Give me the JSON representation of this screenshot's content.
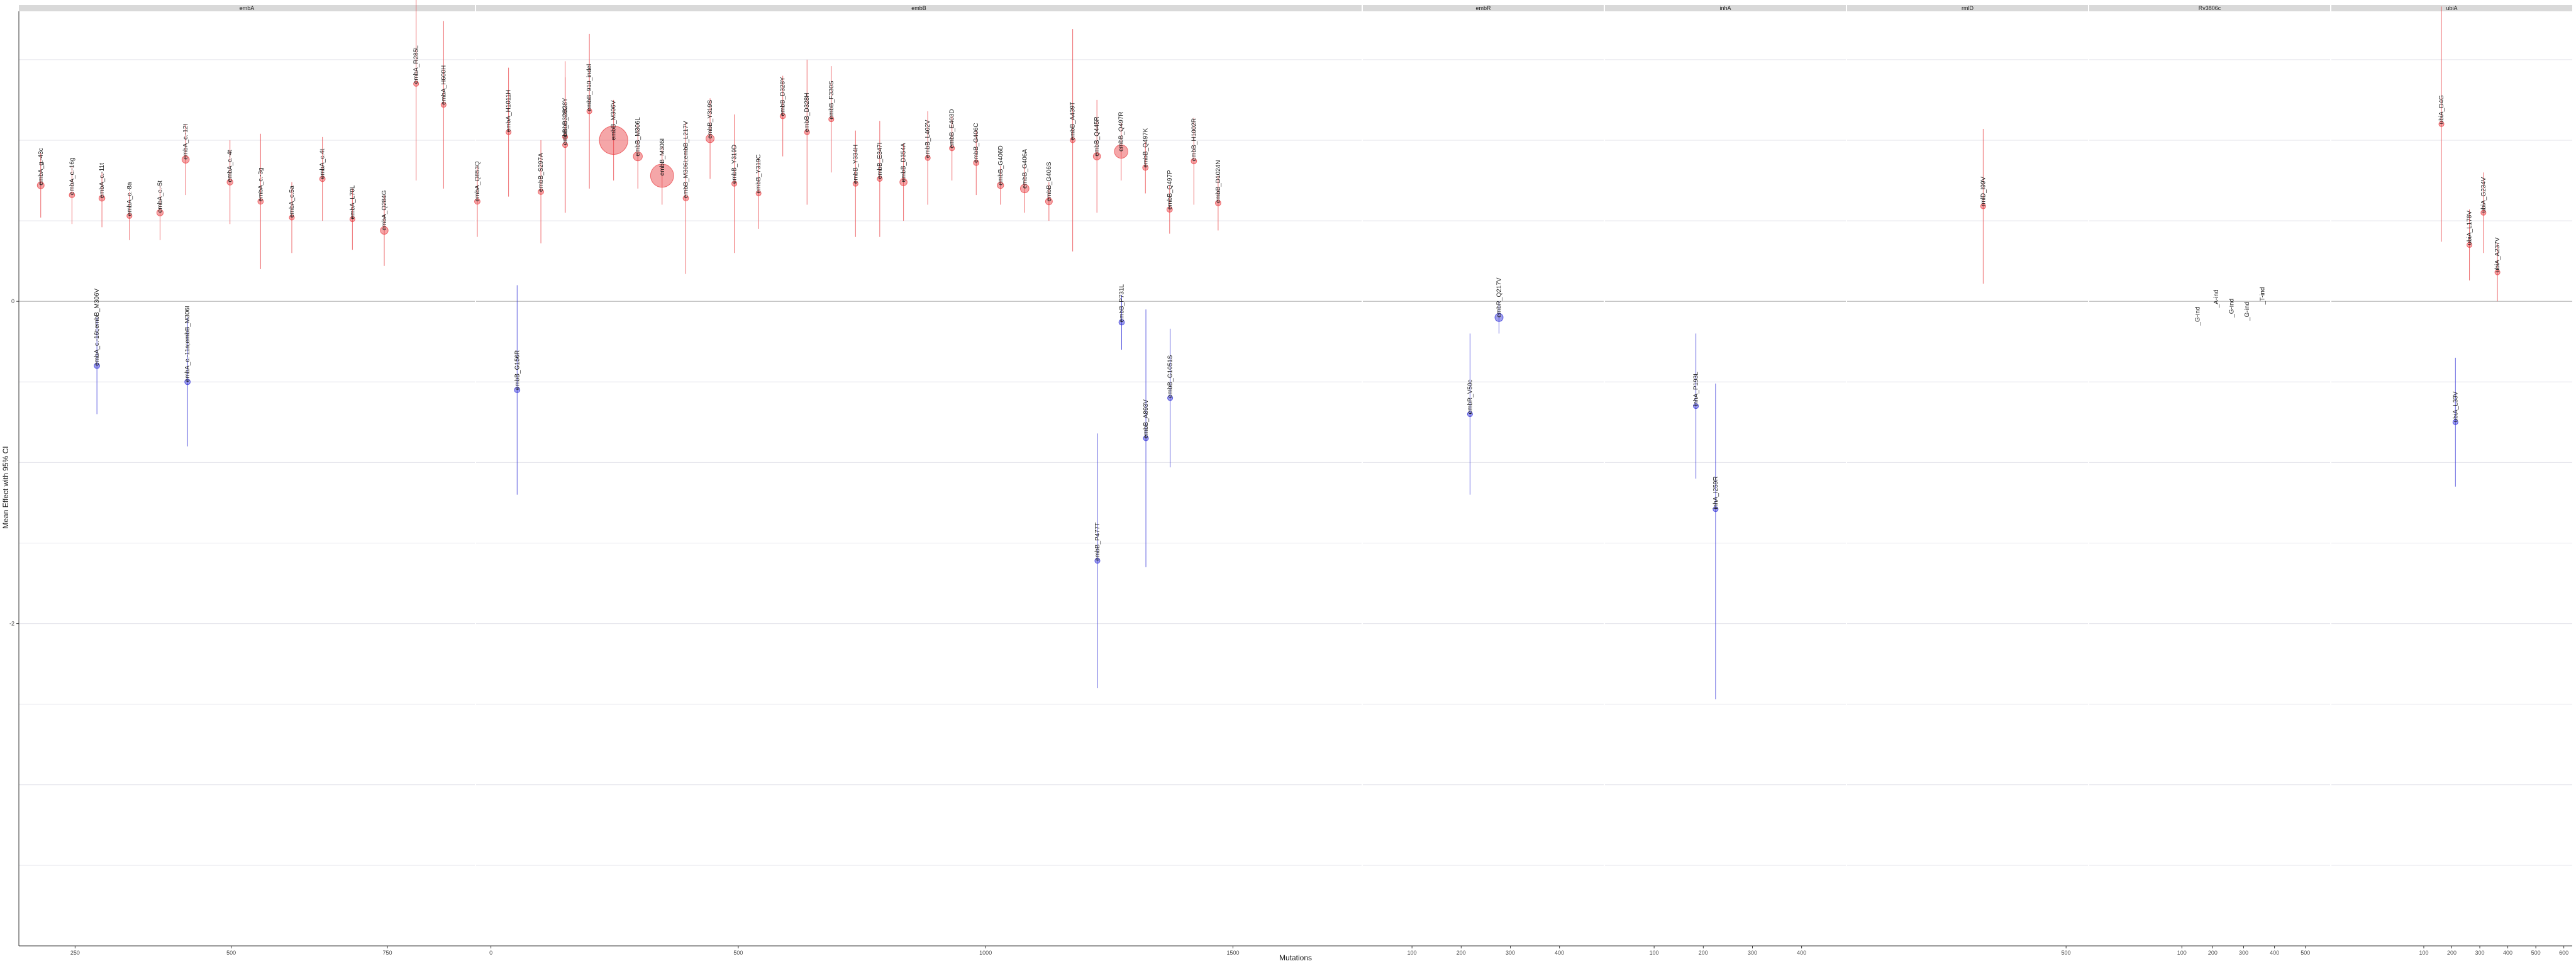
{
  "chart_data": {
    "type": "scatter",
    "subtype": "faceted forest plot (point estimate with 95% CI, point size = weight)",
    "xlabel": "Mutations",
    "ylabel": "Mean Effect with 95% CI",
    "ylim": [
      -4.0,
      1.8
    ],
    "y_ticks": [
      -2,
      0,
      2
    ],
    "grid": true,
    "colors": {
      "positive": "#e8393d",
      "negative": "#2b2bd6",
      "strip": "#d9d9d9",
      "grid": "#e3e3ea",
      "zero": "#bdbdbd"
    },
    "facets": [
      {
        "name": "embA",
        "xlim": [
          160,
          890
        ],
        "ticks": [
          250,
          500,
          750
        ]
      },
      {
        "name": "embB",
        "xlim": [
          -30,
          1760
        ],
        "ticks": [
          0,
          500,
          1000,
          1500
        ]
      },
      {
        "name": "embR",
        "xlim": [
          0,
          490
        ],
        "ticks": [
          100,
          200,
          300,
          400
        ]
      },
      {
        "name": "inhA",
        "xlim": [
          0,
          490
        ],
        "ticks": [
          100,
          200,
          300,
          400
        ]
      },
      {
        "name": "rmlD",
        "xlim": [
          -200,
          570
        ],
        "ticks": [
          500
        ]
      },
      {
        "name": "Rv3806c",
        "xlim": [
          -200,
          580
        ],
        "ticks": [
          100,
          200,
          300,
          400,
          500
        ]
      },
      {
        "name": "ubiA",
        "xlim": [
          -230,
          630
        ],
        "ticks": [
          100,
          200,
          300,
          400,
          500,
          600
        ]
      }
    ],
    "points": [
      {
        "facet": 0,
        "label": "embA_g.-43c",
        "x": 195,
        "y": 0.72,
        "lo": 0.52,
        "hi": 0.92,
        "w": 0.35
      },
      {
        "facet": 0,
        "label": "embA_c.-16g",
        "x": 245,
        "y": 0.66,
        "lo": 0.48,
        "hi": 0.84,
        "w": 0.2
      },
      {
        "facet": 0,
        "label": "embA_c.-11t",
        "x": 293,
        "y": 0.64,
        "lo": 0.46,
        "hi": 0.8,
        "w": 0.25
      },
      {
        "facet": 0,
        "label": "embA_c.-8a",
        "x": 337,
        "y": 0.53,
        "lo": 0.38,
        "hi": 0.68,
        "w": 0.15
      },
      {
        "facet": 0,
        "label": "embA_c.-5t",
        "x": 386,
        "y": 0.55,
        "lo": 0.38,
        "hi": 0.72,
        "w": 0.3
      },
      {
        "facet": 0,
        "label": "embA_c.-12t",
        "x": 427,
        "y": 0.88,
        "lo": 0.66,
        "hi": 1.1,
        "w": 0.4
      },
      {
        "facet": 0,
        "label": "embA_c.-4t",
        "x": 498,
        "y": 0.74,
        "lo": 0.48,
        "hi": 1.0,
        "w": 0.25
      },
      {
        "facet": 0,
        "label": "embA_c.-3g",
        "x": 547,
        "y": 0.62,
        "lo": 0.2,
        "hi": 1.04,
        "w": 0.2
      },
      {
        "facet": 0,
        "label": "embA_c.5a",
        "x": 597,
        "y": 0.52,
        "lo": 0.3,
        "hi": 0.74,
        "w": 0.15
      },
      {
        "facet": 0,
        "label": "embA_c.4t",
        "x": 646,
        "y": 0.76,
        "lo": 0.5,
        "hi": 1.02,
        "w": 0.2
      },
      {
        "facet": 0,
        "label": "embA_L70L",
        "x": 694,
        "y": 0.51,
        "lo": 0.32,
        "hi": 0.7,
        "w": 0.15
      },
      {
        "facet": 0,
        "label": "embA_Q284G",
        "x": 745,
        "y": 0.44,
        "lo": 0.22,
        "hi": 0.66,
        "w": 0.45
      },
      {
        "facet": 0,
        "label": "embA_R285L",
        "x": 796,
        "y": 1.35,
        "lo": 0.75,
        "hi": 1.95,
        "w": 0.15
      },
      {
        "facet": 0,
        "label": "embA_H600H",
        "x": 840,
        "y": 1.22,
        "lo": 0.7,
        "hi": 1.74,
        "w": 0.15
      },
      {
        "facet": 0,
        "label": "embA_Q853Q",
        "x": 894,
        "y": 0.62,
        "lo": 0.4,
        "hi": 0.84,
        "w": 0.2
      },
      {
        "facet": 0,
        "label": "embA_H1011H",
        "x": 944,
        "y": 1.05,
        "lo": 0.65,
        "hi": 1.45,
        "w": 0.15
      },
      {
        "facet": 0,
        "label": "embA_c.-16t;embB_M306V",
        "x": 285,
        "y": -0.4,
        "lo": -0.7,
        "hi": -0.1,
        "w": 0.2
      },
      {
        "facet": 0,
        "label": "embA_c.-11a;embB_M306I",
        "x": 430,
        "y": -0.5,
        "lo": -0.9,
        "hi": -0.1,
        "w": 0.2
      },
      {
        "facet": 1,
        "label": "embB_G156R",
        "x": 53,
        "y": -0.55,
        "lo": -1.2,
        "hi": 0.1,
        "w": 0.2
      },
      {
        "facet": 1,
        "label": "embB_S297A",
        "x": 101,
        "y": 0.68,
        "lo": 0.36,
        "hi": 1.0,
        "w": 0.2
      },
      {
        "facet": 1,
        "label": "embB_D328Y",
        "x": 150,
        "y": 1.02,
        "lo": 0.55,
        "hi": 1.49,
        "w": 0.15
      },
      {
        "facet": 1,
        "label": "embB_D328G",
        "x": 150,
        "y": 0.97,
        "lo": 0.55,
        "hi": 1.39,
        "w": 0.15
      },
      {
        "facet": 1,
        "label": "embB_910_indel",
        "x": 199,
        "y": 1.18,
        "lo": 0.7,
        "hi": 1.66,
        "w": 0.15
      },
      {
        "facet": 1,
        "label": "embB_M306V",
        "x": 248,
        "y": 1.0,
        "lo": 0.75,
        "hi": 1.25,
        "w": 2.8
      },
      {
        "facet": 1,
        "label": "embB_M306L",
        "x": 297,
        "y": 0.9,
        "lo": 0.7,
        "hi": 1.1,
        "w": 0.6
      },
      {
        "facet": 1,
        "label": "embB_M306I",
        "x": 346,
        "y": 0.78,
        "lo": 0.6,
        "hi": 0.96,
        "w": 2.2
      },
      {
        "facet": 1,
        "label": "embB_M306I;embB_L217V",
        "x": 394,
        "y": 0.64,
        "lo": 0.17,
        "hi": 1.11,
        "w": 0.2
      },
      {
        "facet": 1,
        "label": "embB_Y319S",
        "x": 443,
        "y": 1.01,
        "lo": 0.76,
        "hi": 1.26,
        "w": 0.5
      },
      {
        "facet": 1,
        "label": "embB_Y319D",
        "x": 492,
        "y": 0.73,
        "lo": 0.3,
        "hi": 1.16,
        "w": 0.15
      },
      {
        "facet": 1,
        "label": "embB_Y319C",
        "x": 541,
        "y": 0.67,
        "lo": 0.45,
        "hi": 0.89,
        "w": 0.15
      },
      {
        "facet": 1,
        "label": "embB_D328Y",
        "x": 590,
        "y": 1.15,
        "lo": 0.9,
        "hi": 1.4,
        "w": 0.2
      },
      {
        "facet": 1,
        "label": "embB_D328H",
        "x": 639,
        "y": 1.05,
        "lo": 0.6,
        "hi": 1.5,
        "w": 0.15
      },
      {
        "facet": 1,
        "label": "embB_F330S",
        "x": 688,
        "y": 1.13,
        "lo": 0.8,
        "hi": 1.46,
        "w": 0.15
      },
      {
        "facet": 1,
        "label": "embB_Y334H",
        "x": 737,
        "y": 0.73,
        "lo": 0.4,
        "hi": 1.06,
        "w": 0.15
      },
      {
        "facet": 1,
        "label": "embB_E347I",
        "x": 786,
        "y": 0.76,
        "lo": 0.4,
        "hi": 1.12,
        "w": 0.15
      },
      {
        "facet": 1,
        "label": "embB_D354A",
        "x": 834,
        "y": 0.74,
        "lo": 0.5,
        "hi": 0.98,
        "w": 0.4
      },
      {
        "facet": 1,
        "label": "embB_L402V",
        "x": 883,
        "y": 0.89,
        "lo": 0.6,
        "hi": 1.18,
        "w": 0.15
      },
      {
        "facet": 1,
        "label": "embB_E403D",
        "x": 932,
        "y": 0.95,
        "lo": 0.75,
        "hi": 1.15,
        "w": 0.15
      },
      {
        "facet": 1,
        "label": "embB_G406C",
        "x": 981,
        "y": 0.86,
        "lo": 0.66,
        "hi": 1.06,
        "w": 0.2
      },
      {
        "facet": 1,
        "label": "embB_G406D",
        "x": 1030,
        "y": 0.72,
        "lo": 0.6,
        "hi": 0.84,
        "w": 0.3
      },
      {
        "facet": 1,
        "label": "embB_G406A",
        "x": 1079,
        "y": 0.7,
        "lo": 0.55,
        "hi": 0.85,
        "w": 0.55
      },
      {
        "facet": 1,
        "label": "embB_G406S",
        "x": 1128,
        "y": 0.62,
        "lo": 0.5,
        "hi": 0.74,
        "w": 0.35
      },
      {
        "facet": 1,
        "label": "embB_A439T",
        "x": 1176,
        "y": 1.0,
        "lo": 0.31,
        "hi": 1.69,
        "w": 0.15
      },
      {
        "facet": 1,
        "label": "embB_Q445R",
        "x": 1225,
        "y": 0.9,
        "lo": 0.55,
        "hi": 1.25,
        "w": 0.4
      },
      {
        "facet": 1,
        "label": "embB_Q497R",
        "x": 1274,
        "y": 0.93,
        "lo": 0.75,
        "hi": 1.11,
        "w": 1.1
      },
      {
        "facet": 1,
        "label": "embB_Q497K",
        "x": 1323,
        "y": 0.83,
        "lo": 0.67,
        "hi": 0.99,
        "w": 0.2
      },
      {
        "facet": 1,
        "label": "embB_Q497P",
        "x": 1372,
        "y": 0.57,
        "lo": 0.42,
        "hi": 0.72,
        "w": 0.2
      },
      {
        "facet": 1,
        "label": "embB_H1002R",
        "x": 1421,
        "y": 0.87,
        "lo": 0.6,
        "hi": 1.14,
        "w": 0.2
      },
      {
        "facet": 1,
        "label": "embB_D1024N",
        "x": 1470,
        "y": 0.61,
        "lo": 0.44,
        "hi": 0.78,
        "w": 0.2
      },
      {
        "facet": 1,
        "label": "embB_P477T",
        "x": 1226,
        "y": -1.61,
        "lo": -2.4,
        "hi": -0.82,
        "w": 0.15
      },
      {
        "facet": 1,
        "label": "embB_P731L",
        "x": 1275,
        "y": -0.13,
        "lo": -0.3,
        "hi": 0.04,
        "w": 0.2
      },
      {
        "facet": 1,
        "label": "embB_A893V",
        "x": 1324,
        "y": -0.85,
        "lo": -1.65,
        "hi": -0.05,
        "w": 0.15
      },
      {
        "facet": 1,
        "label": "embB_G1051S",
        "x": 1373,
        "y": -0.6,
        "lo": -1.03,
        "hi": -0.17,
        "w": 0.15
      },
      {
        "facet": 2,
        "label": "embR_V50c",
        "x": 218,
        "y": -0.7,
        "lo": -1.2,
        "hi": -0.2,
        "w": 0.15
      },
      {
        "facet": 2,
        "label": "embR_Q217V",
        "x": 277,
        "y": -0.1,
        "lo": -0.2,
        "hi": 0.0,
        "w": 0.5
      },
      {
        "facet": 3,
        "label": "inhA_P193L",
        "x": 185,
        "y": -0.65,
        "lo": -1.1,
        "hi": -0.2,
        "w": 0.15
      },
      {
        "facet": 3,
        "label": "inhA_I259R",
        "x": 225,
        "y": -1.29,
        "lo": -2.47,
        "hi": -0.51,
        "w": 0.15
      },
      {
        "facet": 4,
        "label": "rmlD_I99V",
        "x": 235,
        "y": 0.59,
        "lo": 0.11,
        "hi": 1.07,
        "w": 0.15
      },
      {
        "facet": 5,
        "label": "_G-ind",
        "x": 151,
        "y": -0.15,
        "lo": -0.15,
        "hi": -0.15,
        "w": 0
      },
      {
        "facet": 5,
        "label": "_A-ind",
        "x": 211,
        "y": -0.04,
        "lo": -0.04,
        "hi": -0.04,
        "w": 0
      },
      {
        "facet": 5,
        "label": "_G-ind",
        "x": 261,
        "y": -0.1,
        "lo": -0.1,
        "hi": -0.1,
        "w": 0
      },
      {
        "facet": 5,
        "label": "_G-ind",
        "x": 311,
        "y": -0.12,
        "lo": -0.12,
        "hi": -0.12,
        "w": 0
      },
      {
        "facet": 5,
        "label": "_T-ind",
        "x": 361,
        "y": -0.02,
        "lo": -0.02,
        "hi": -0.02,
        "w": 0
      },
      {
        "facet": 6,
        "label": "ubiA_D4G",
        "x": 163,
        "y": 1.1,
        "lo": 0.37,
        "hi": 1.83,
        "w": 0.15
      },
      {
        "facet": 6,
        "label": "ubiA_L33V",
        "x": 213,
        "y": -0.75,
        "lo": -1.15,
        "hi": -0.35,
        "w": 0.15
      },
      {
        "facet": 6,
        "label": "ubiA_L178V",
        "x": 263,
        "y": 0.35,
        "lo": 0.13,
        "hi": 0.57,
        "w": 0.15
      },
      {
        "facet": 6,
        "label": "ubiA_G234V",
        "x": 313,
        "y": 0.55,
        "lo": 0.3,
        "hi": 0.8,
        "w": 0.15
      },
      {
        "facet": 6,
        "label": "ubiA_A237V",
        "x": 363,
        "y": 0.18,
        "lo": 0.0,
        "hi": 0.36,
        "w": 0.15
      }
    ]
  }
}
